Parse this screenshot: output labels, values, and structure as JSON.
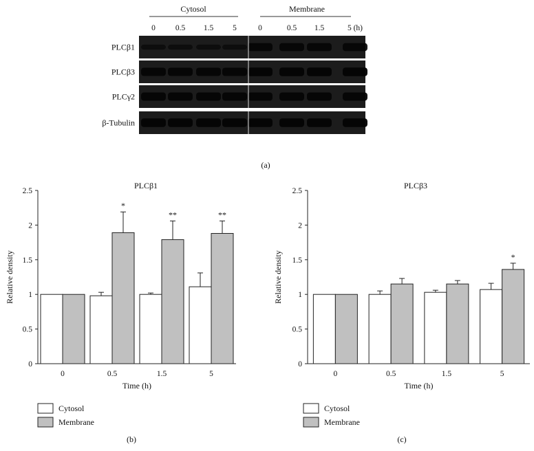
{
  "figure": {
    "panel_labels": {
      "a": "(a)",
      "b": "(b)",
      "c": "(c)"
    },
    "blot": {
      "groups": [
        {
          "label": "Cytosol",
          "lanes": [
            "0",
            "0.5",
            "1.5",
            "5"
          ]
        },
        {
          "label": "Membrane",
          "lanes": [
            "0",
            "0.5",
            "1.5",
            "5 (h)"
          ]
        }
      ],
      "rows": [
        {
          "label": "PLCβ1",
          "cyto_intensity": 0.35,
          "memb_intensity": 0.85
        },
        {
          "label": "PLCβ3",
          "cyto_intensity": 0.9,
          "memb_intensity": 0.95
        },
        {
          "label": "PLCγ2",
          "cyto_intensity": 0.9,
          "memb_intensity": 0.9
        },
        {
          "label": "β-Tubulin",
          "cyto_intensity": 0.95,
          "memb_intensity": 0.95
        }
      ]
    }
  },
  "chart_data": [
    {
      "type": "bar",
      "title": "PLCβ1",
      "xlabel": "Time (h)",
      "ylabel": "Relative density",
      "categories": [
        "0",
        "0.5",
        "1.5",
        "5"
      ],
      "ylim": [
        0,
        2.5
      ],
      "yticks": [
        "0",
        "0.5",
        "1",
        "1.5",
        "2",
        "2.5"
      ],
      "series": [
        {
          "name": "Cytosol",
          "color": "#ffffff",
          "values": [
            1.0,
            0.98,
            1.0,
            1.11
          ],
          "errors": [
            0,
            0.05,
            0.02,
            0.2
          ]
        },
        {
          "name": "Membrane",
          "color": "#c0c0c0",
          "values": [
            1.0,
            1.89,
            1.79,
            1.88
          ],
          "errors": [
            0,
            0.3,
            0.27,
            0.18
          ]
        }
      ],
      "annotations": [
        "",
        "*",
        "**",
        "**"
      ],
      "legend": "bottom-left"
    },
    {
      "type": "bar",
      "title": "PLCβ3",
      "xlabel": "Time (h)",
      "ylabel": "Relative density",
      "categories": [
        "0",
        "0.5",
        "1.5",
        "5"
      ],
      "ylim": [
        0,
        2.5
      ],
      "yticks": [
        "0",
        "0.5",
        "1",
        "1.5",
        "2",
        "2.5"
      ],
      "series": [
        {
          "name": "Cytosol",
          "color": "#ffffff",
          "values": [
            1.0,
            1.0,
            1.03,
            1.07
          ],
          "errors": [
            0,
            0.05,
            0.03,
            0.09
          ]
        },
        {
          "name": "Membrane",
          "color": "#c0c0c0",
          "values": [
            1.0,
            1.15,
            1.15,
            1.36
          ],
          "errors": [
            0,
            0.08,
            0.05,
            0.09
          ]
        }
      ],
      "annotations": [
        "",
        "",
        "",
        "*"
      ],
      "legend": "bottom-left"
    }
  ]
}
